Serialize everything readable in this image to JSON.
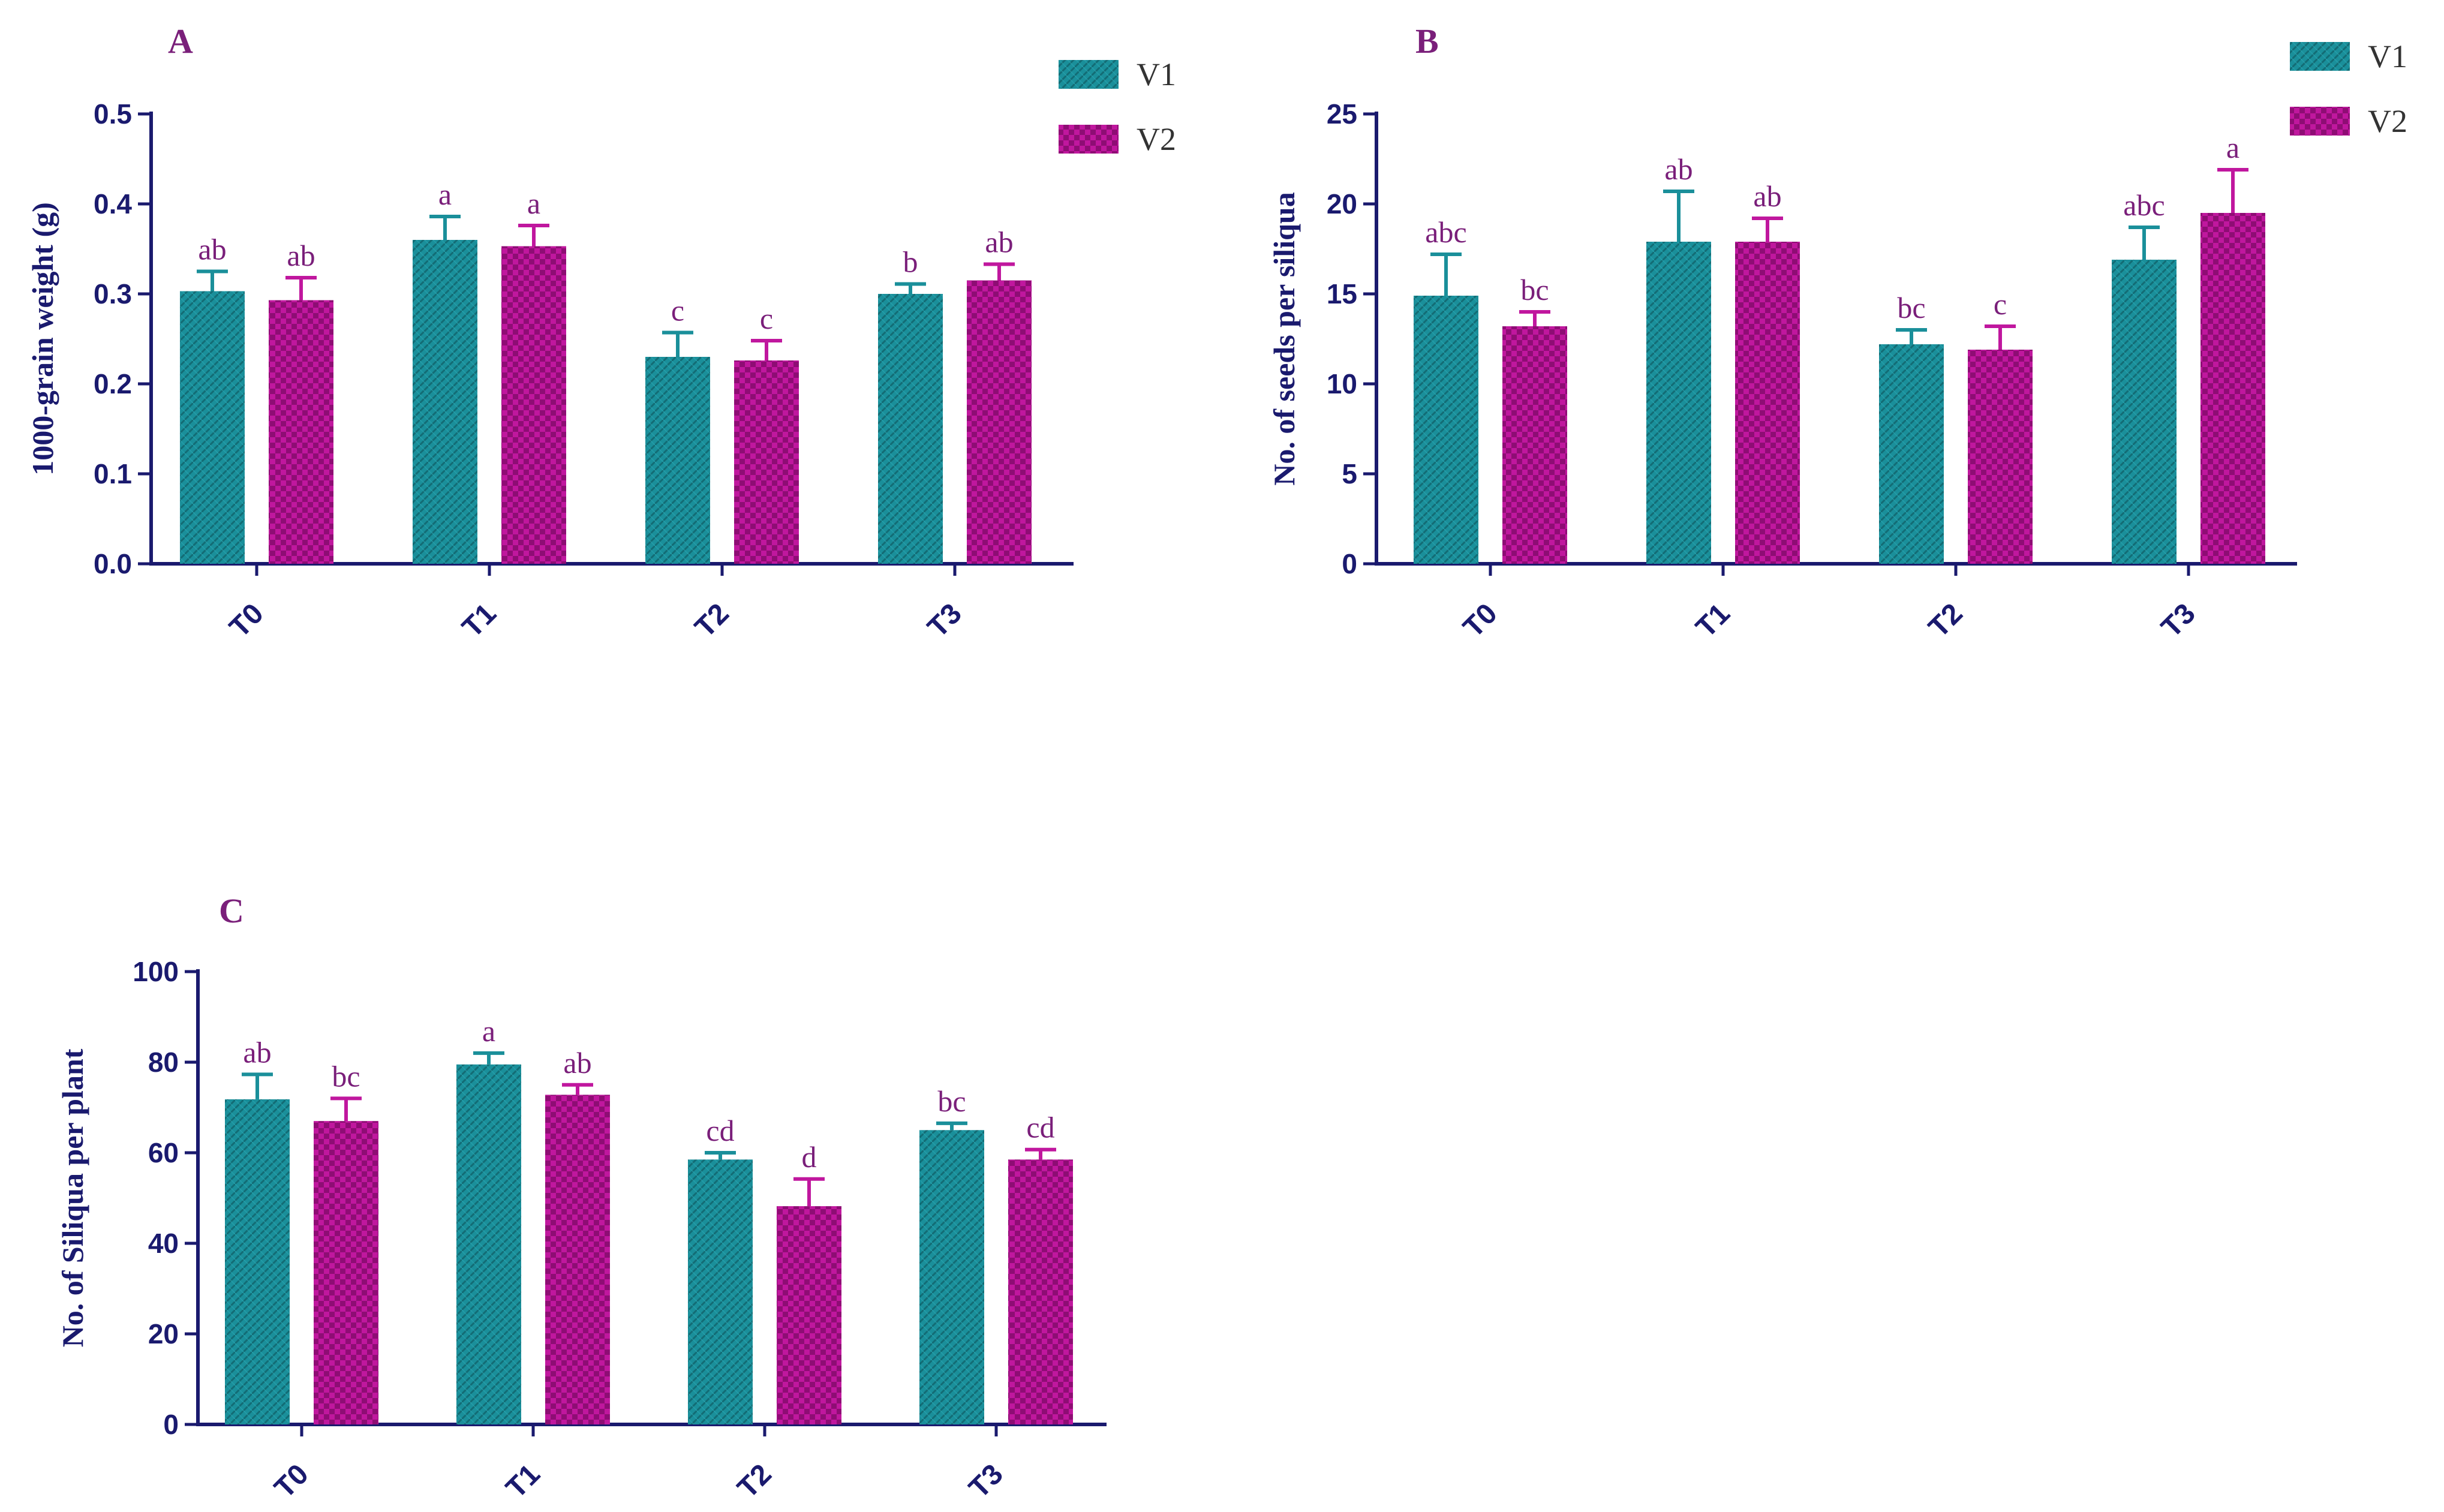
{
  "figure": {
    "colors": {
      "V1": "#1a8f9a",
      "V2": "#c0179e",
      "axis": "#1a1a6e",
      "letters": "#7a1f7a"
    }
  },
  "chart_data": [
    {
      "panel": "A",
      "type": "bar",
      "title": "",
      "xlabel": "",
      "ylabel": "1000-grain weight (g)",
      "ylim": [
        0,
        0.5
      ],
      "yticks": [
        "0.0",
        "0.1",
        "0.2",
        "0.3",
        "0.4",
        "0.5"
      ],
      "categories": [
        "T0",
        "T1",
        "T2",
        "T3"
      ],
      "legend": [
        "V1",
        "V2"
      ],
      "series": [
        {
          "name": "V1",
          "values": [
            0.303,
            0.36,
            0.23,
            0.3
          ],
          "errors": [
            0.022,
            0.026,
            0.027,
            0.011
          ],
          "letters": [
            "ab",
            "a",
            "c",
            "b"
          ]
        },
        {
          "name": "V2",
          "values": [
            0.293,
            0.353,
            0.226,
            0.315
          ],
          "errors": [
            0.025,
            0.023,
            0.022,
            0.018
          ],
          "letters": [
            "ab",
            "a",
            "c",
            "ab"
          ]
        }
      ]
    },
    {
      "panel": "B",
      "type": "bar",
      "title": "",
      "xlabel": "",
      "ylabel": "No. of seeds per siliqua",
      "ylim": [
        0,
        25
      ],
      "yticks": [
        "0",
        "5",
        "10",
        "15",
        "20",
        "25"
      ],
      "categories": [
        "T0",
        "T1",
        "T2",
        "T3"
      ],
      "legend": [
        "V1",
        "V2"
      ],
      "series": [
        {
          "name": "V1",
          "values": [
            14.9,
            17.9,
            12.2,
            16.9
          ],
          "errors": [
            2.3,
            2.8,
            0.8,
            1.8
          ],
          "letters": [
            "abc",
            "ab",
            "bc",
            "abc"
          ]
        },
        {
          "name": "V2",
          "values": [
            13.2,
            17.9,
            11.9,
            19.5
          ],
          "errors": [
            0.8,
            1.3,
            1.3,
            2.4
          ],
          "letters": [
            "bc",
            "ab",
            "c",
            "a"
          ]
        }
      ]
    },
    {
      "panel": "C",
      "type": "bar",
      "title": "",
      "xlabel": "",
      "ylabel": "No. of Siliqua per plant",
      "ylim": [
        0,
        100
      ],
      "yticks": [
        "0",
        "20",
        "40",
        "60",
        "80",
        "100"
      ],
      "categories": [
        "T0",
        "T1",
        "T2",
        "T3"
      ],
      "legend": [],
      "series": [
        {
          "name": "V1",
          "values": [
            71.8,
            79.5,
            58.5,
            65.0
          ],
          "errors": [
            5.5,
            2.5,
            1.5,
            1.5
          ],
          "letters": [
            "ab",
            "a",
            "cd",
            "bc"
          ]
        },
        {
          "name": "V2",
          "values": [
            67.0,
            72.8,
            48.2,
            58.5
          ],
          "errors": [
            5.0,
            2.2,
            6.0,
            2.2
          ],
          "letters": [
            "bc",
            "ab",
            "d",
            "cd"
          ]
        }
      ]
    }
  ]
}
